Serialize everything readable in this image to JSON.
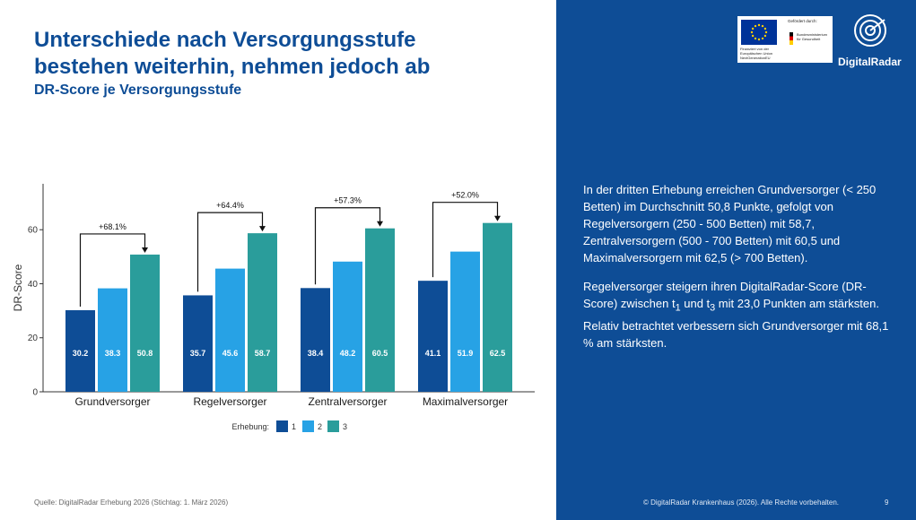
{
  "slide": {
    "title_line1": "Unterschiede nach Versorgungsstufe",
    "title_line2": "bestehen weiterhin, nehmen jedoch ab",
    "subtitle": "DR-Score je Versorgungsstufe",
    "source": "Quelle: DigitalRadar Erhebung 2026 (Stichtag: 1. März 2026)",
    "footer": "© DigitalRadar Krankenhaus (2026). Alle Rechte vorbehalten.",
    "page_number": "9"
  },
  "logos": {
    "funding_label": "Gefördert durch:",
    "eu_text": "Finanziert von der Europäischen Union NextGenerationEU",
    "ministry_text": "Bundesministerium für Gesundheit",
    "brand_name": "DigitalRadar"
  },
  "panel": {
    "paragraph1": "In der dritten Erhebung erreichen Grundversorger (< 250 Betten) im Durchschnitt 50,8 Punkte, gefolgt von Regelversorgern (250 - 500 Betten) mit 58,7, Zentralversorgern (500 - 700 Betten) mit 60,5 und Maximalversorgern mit 62,5 (> 700 Betten).",
    "p2_part1": "Regelversorger steigern ihren DigitalRadar-Score (DR-Score) zwischen t",
    "p2_sub1": "1",
    "p2_part2": " und t",
    "p2_sub3": "3",
    "p2_part3": " mit 23,0 Punkten am stärksten. Relativ betrachtet verbessern sich Grundversorger mit 68,1 % am stärksten."
  },
  "chart_data": {
    "type": "bar",
    "categories": [
      "Grundversorger",
      "Regelversorger",
      "Zentralversorger",
      "Maximalversorger"
    ],
    "series": [
      {
        "name": "1",
        "values": [
          30.2,
          35.7,
          38.4,
          41.1
        ],
        "labels": [
          "30.2",
          "35.7",
          "38.4",
          "41.1"
        ]
      },
      {
        "name": "2",
        "values": [
          38.3,
          45.6,
          48.2,
          51.9
        ],
        "labels": [
          "38.3",
          "45.6",
          "48.2",
          "51.9"
        ]
      },
      {
        "name": "3",
        "values": [
          50.8,
          58.7,
          60.5,
          62.5
        ],
        "labels": [
          "50.8",
          "58.7",
          "60.5",
          "62.5"
        ]
      }
    ],
    "annotations": [
      "+68.1%",
      "+64.4%",
      "+57.3%",
      "+52.0%"
    ],
    "ylabel": "DR-Score",
    "xlabel": "",
    "legend_title": "Erhebung:",
    "legend_position": "bottom",
    "yticks": [
      0,
      20,
      40,
      60
    ],
    "ylim": [
      0,
      77
    ],
    "grid": false,
    "colors": [
      "#0e4d96",
      "#27a2e5",
      "#2a9d9b"
    ]
  }
}
